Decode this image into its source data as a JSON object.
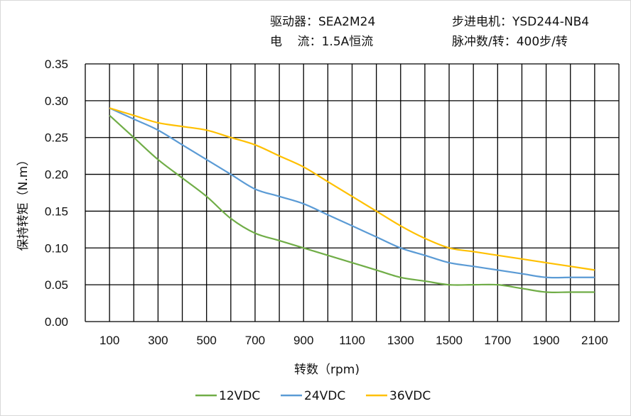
{
  "header": {
    "driver": "驱动器：SEA2M24",
    "motor": "步进电机：YSD244-NB4",
    "current": "电    流：1.5A恒流",
    "pulses": "脉冲数/转：400步/转"
  },
  "chart_data": {
    "type": "line",
    "title": "",
    "xlabel": "转数（rpm)",
    "ylabel": "保持转矩（N.m）",
    "xlim": [
      0,
      2200
    ],
    "ylim": [
      0,
      0.35
    ],
    "grid": true,
    "legend_position": "bottom",
    "x_ticks": [
      100,
      300,
      500,
      700,
      900,
      1100,
      1300,
      1500,
      1700,
      1900,
      2100
    ],
    "x_tick_labels": [
      "100",
      "300",
      "500",
      "700",
      "900",
      "1100",
      "1300",
      "1500",
      "1700",
      "1900",
      "2100"
    ],
    "y_ticks": [
      0,
      0.05,
      0.1,
      0.15,
      0.2,
      0.25,
      0.3,
      0.35
    ],
    "y_tick_labels": [
      "0.00",
      "0.05",
      "0.10",
      "0.15",
      "0.20",
      "0.25",
      "0.30",
      "0.35"
    ],
    "x": [
      100,
      200,
      300,
      400,
      500,
      600,
      700,
      800,
      900,
      1000,
      1100,
      1200,
      1300,
      1400,
      1500,
      1600,
      1700,
      1800,
      1900,
      2000,
      2100
    ],
    "series": [
      {
        "name": "12VDC",
        "color": "#70ad47",
        "values": [
          0.28,
          0.25,
          0.22,
          0.195,
          0.17,
          0.14,
          0.12,
          0.11,
          0.1,
          0.09,
          0.08,
          0.07,
          0.06,
          0.055,
          0.05,
          0.05,
          0.05,
          0.045,
          0.04,
          0.04,
          0.04
        ]
      },
      {
        "name": "24VDC",
        "color": "#5b9bd5",
        "values": [
          0.29,
          0.275,
          0.26,
          0.24,
          0.22,
          0.2,
          0.18,
          0.17,
          0.16,
          0.145,
          0.13,
          0.115,
          0.1,
          0.09,
          0.08,
          0.075,
          0.07,
          0.065,
          0.06,
          0.06,
          0.06
        ]
      },
      {
        "name": "36VDC",
        "color": "#ffc000",
        "values": [
          0.29,
          0.28,
          0.27,
          0.265,
          0.26,
          0.25,
          0.24,
          0.225,
          0.21,
          0.19,
          0.17,
          0.15,
          0.13,
          0.113,
          0.1,
          0.095,
          0.09,
          0.085,
          0.08,
          0.075,
          0.07
        ]
      }
    ]
  }
}
